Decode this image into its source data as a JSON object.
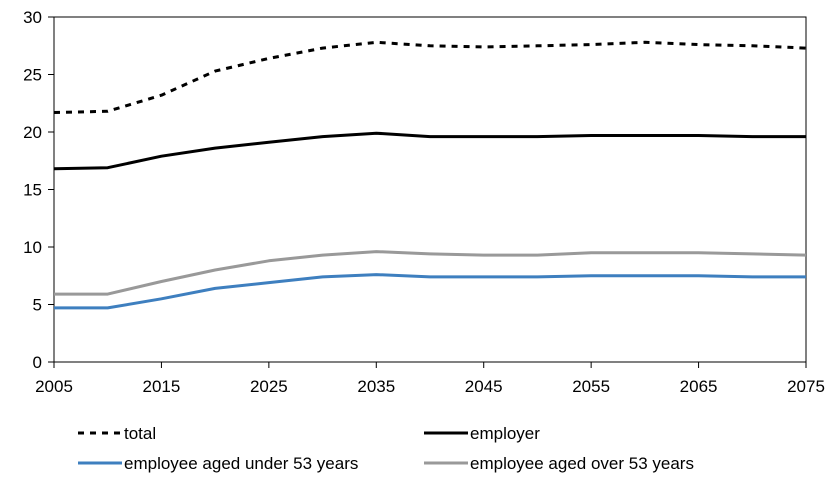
{
  "chart_data": {
    "type": "line",
    "title": "",
    "xlabel": "",
    "ylabel": "",
    "xlim": [
      2005,
      2075
    ],
    "ylim": [
      0,
      30
    ],
    "xticks": [
      "2005",
      "2015",
      "2025",
      "2035",
      "2045",
      "2055",
      "2065",
      "2075"
    ],
    "yticks": [
      "0",
      "5",
      "10",
      "15",
      "20",
      "25",
      "30"
    ],
    "grid": false,
    "legend_position": "bottom",
    "x": [
      2005,
      2010,
      2015,
      2020,
      2025,
      2030,
      2035,
      2040,
      2045,
      2050,
      2055,
      2060,
      2065,
      2070,
      2075
    ],
    "series": [
      {
        "name": "total",
        "style": "dashed",
        "color": "#000000",
        "values": [
          21.7,
          21.8,
          23.2,
          25.3,
          26.4,
          27.3,
          27.8,
          27.5,
          27.4,
          27.5,
          27.6,
          27.8,
          27.6,
          27.5,
          27.3
        ]
      },
      {
        "name": "employer",
        "style": "solid",
        "color": "#000000",
        "values": [
          16.8,
          16.9,
          17.9,
          18.6,
          19.1,
          19.6,
          19.9,
          19.6,
          19.6,
          19.6,
          19.7,
          19.7,
          19.7,
          19.6,
          19.6
        ]
      },
      {
        "name": "employee aged under 53 years",
        "style": "solid",
        "color": "#3e7fbf",
        "values": [
          4.7,
          4.7,
          5.5,
          6.4,
          6.9,
          7.4,
          7.6,
          7.4,
          7.4,
          7.4,
          7.5,
          7.5,
          7.5,
          7.4,
          7.4
        ]
      },
      {
        "name": "employee aged over 53 years",
        "style": "solid",
        "color": "#999999",
        "values": [
          5.9,
          5.9,
          7.0,
          8.0,
          8.8,
          9.3,
          9.6,
          9.4,
          9.3,
          9.3,
          9.5,
          9.5,
          9.5,
          9.4,
          9.3
        ]
      }
    ]
  }
}
